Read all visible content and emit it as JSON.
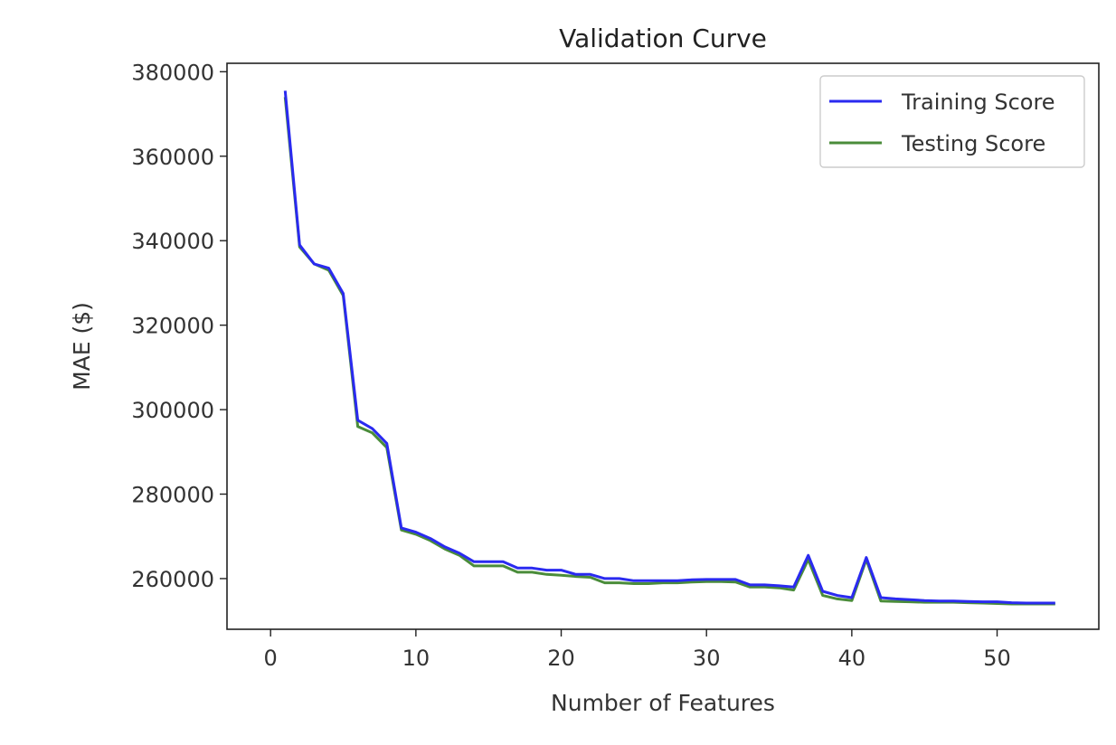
{
  "chart_data": {
    "type": "line",
    "title": "Validation Curve",
    "xlabel": "Number of Features",
    "ylabel": "MAE ($)",
    "xlim": [
      -3,
      57
    ],
    "ylim": [
      248000,
      382000
    ],
    "xticks": [
      0,
      10,
      20,
      30,
      40,
      50
    ],
    "yticks": [
      260000,
      280000,
      300000,
      320000,
      340000,
      360000,
      380000
    ],
    "grid": false,
    "legend": "top-right",
    "colors": {
      "Training Score": "#2a2af0",
      "Testing Score": "#4a8c3a"
    },
    "x": [
      1,
      2,
      3,
      4,
      5,
      6,
      7,
      8,
      9,
      10,
      11,
      12,
      13,
      14,
      15,
      16,
      17,
      18,
      19,
      20,
      21,
      22,
      23,
      24,
      25,
      26,
      27,
      28,
      29,
      30,
      31,
      32,
      33,
      34,
      35,
      36,
      37,
      38,
      39,
      40,
      41,
      42,
      43,
      44,
      45,
      46,
      47,
      48,
      49,
      50,
      51,
      52,
      53,
      54
    ],
    "series": [
      {
        "name": "Training Score",
        "values": [
          375500,
          339000,
          334500,
          333500,
          327500,
          297500,
          295500,
          292000,
          272000,
          271000,
          269500,
          267500,
          266000,
          264000,
          264000,
          264000,
          262500,
          262500,
          262000,
          262000,
          261000,
          261000,
          260000,
          260000,
          259500,
          259500,
          259500,
          259500,
          259700,
          259800,
          259800,
          259800,
          258500,
          258500,
          258300,
          258000,
          265500,
          257000,
          256000,
          255500,
          265000,
          255500,
          255200,
          255000,
          254800,
          254700,
          254700,
          254600,
          254500,
          254500,
          254300,
          254200,
          254200,
          254200
        ]
      },
      {
        "name": "Testing Score",
        "values": [
          374000,
          338500,
          334500,
          333000,
          327000,
          296000,
          294500,
          291000,
          271500,
          270500,
          269000,
          267000,
          265500,
          263000,
          263000,
          263000,
          261500,
          261500,
          261000,
          260800,
          260500,
          260300,
          259000,
          259000,
          258800,
          258800,
          259000,
          259000,
          259200,
          259300,
          259300,
          259200,
          258000,
          258000,
          257800,
          257300,
          264500,
          256000,
          255200,
          254800,
          264500,
          254700,
          254600,
          254500,
          254400,
          254400,
          254400,
          254300,
          254200,
          254100,
          254000,
          254000,
          254000,
          254000
        ]
      }
    ]
  }
}
